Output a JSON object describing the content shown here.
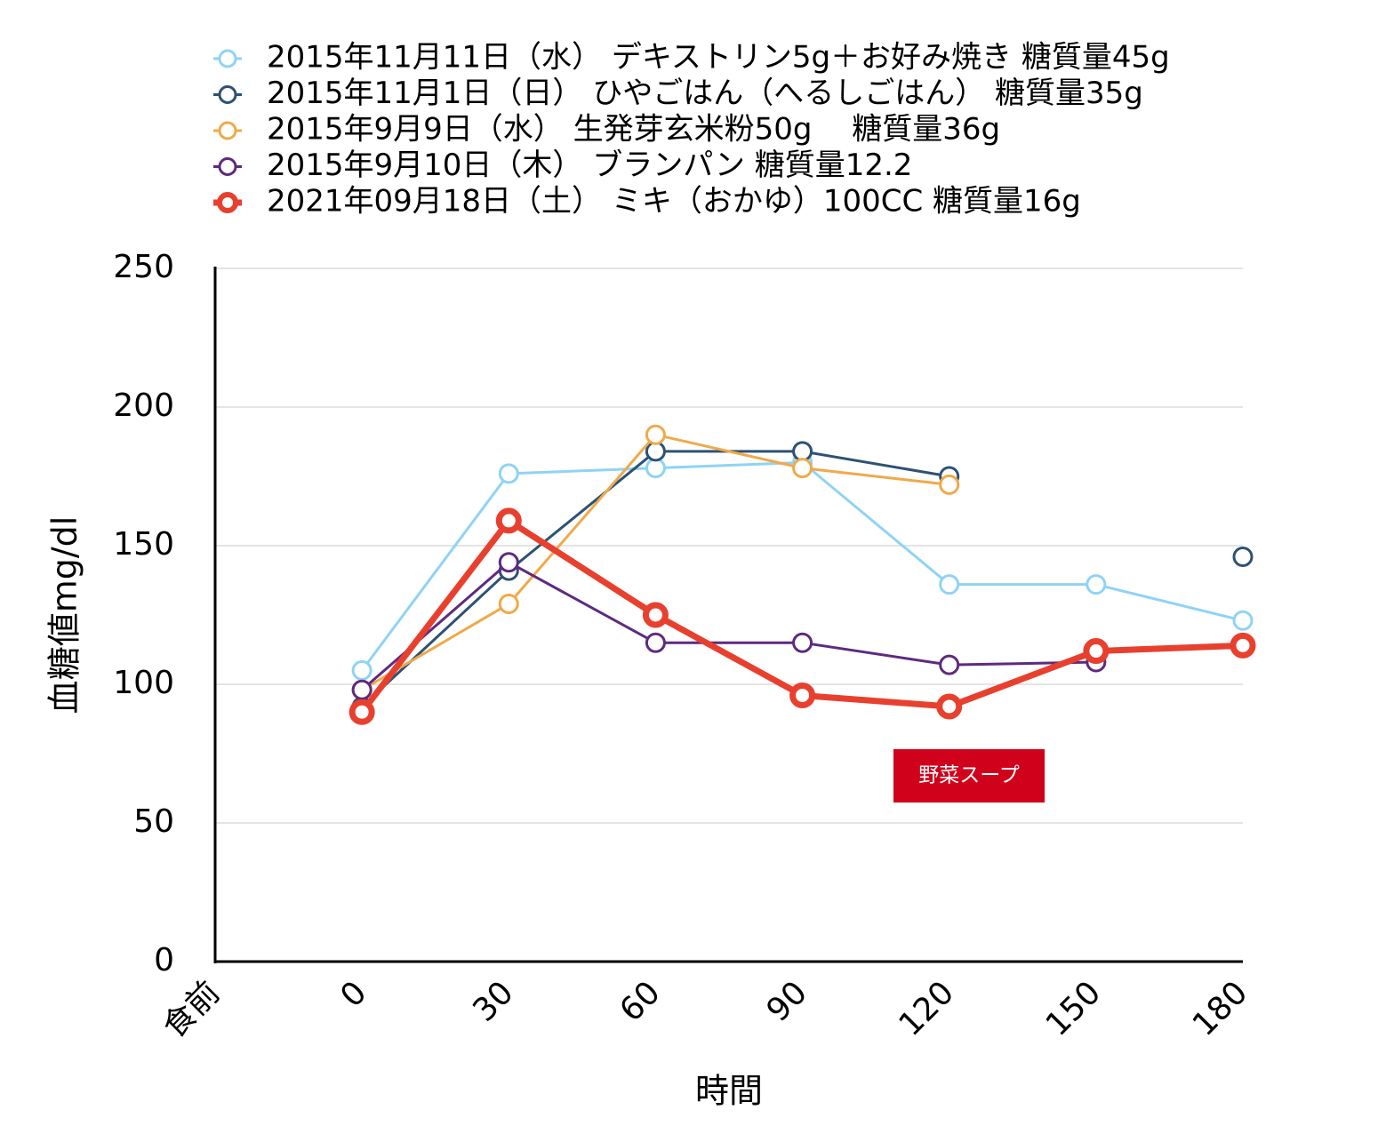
{
  "chart_data": {
    "type": "line",
    "xlabel": "時間",
    "ylabel": "血糖値mg/dl",
    "categories": [
      "食前",
      "0",
      "30",
      "60",
      "90",
      "120",
      "150",
      "180"
    ],
    "ylim": [
      0,
      250
    ],
    "yticks": [
      0,
      50,
      100,
      150,
      200,
      250
    ],
    "grid": true,
    "series": [
      {
        "name": "2015年11月11日（水） デキストリン5g＋お好み焼き 糖質量45g",
        "color": "#8fd3f5",
        "linewidth": 3,
        "values": [
          null,
          105,
          176,
          178,
          180,
          136,
          136,
          123
        ]
      },
      {
        "name": "2015年11月1日（日） ひやごはん（へるしごはん） 糖質量35g",
        "color": "#2d5273",
        "linewidth": 3,
        "values": [
          null,
          92,
          141,
          184,
          184,
          175,
          null,
          146
        ]
      },
      {
        "name": "2015年9月9日（水） 生発芽玄米粉50g 　糖質量36g",
        "color": "#f0a94a",
        "linewidth": 3,
        "values": [
          null,
          98,
          129,
          190,
          178,
          172,
          null,
          null
        ]
      },
      {
        "name": "2015年9月10日（木） ブランパン 糖質量12.2",
        "color": "#5e2a7e",
        "linewidth": 3,
        "values": [
          null,
          98,
          144,
          115,
          115,
          107,
          108,
          null
        ]
      },
      {
        "name": "2021年09月18日（土） ミキ（おかゆ）100CC 糖質量16g",
        "color": "#e8402f",
        "linewidth": 7,
        "values": [
          null,
          90,
          159,
          125,
          96,
          92,
          112,
          114
        ]
      }
    ],
    "annotations": [
      {
        "text": "野菜スープ",
        "color": "#d0021b"
      }
    ]
  }
}
